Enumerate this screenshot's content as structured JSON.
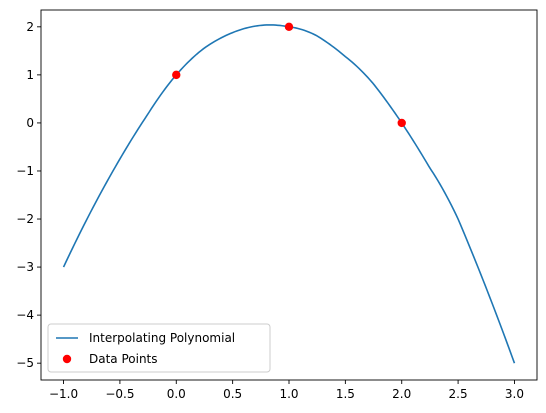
{
  "chart_data": {
    "type": "line",
    "title": "",
    "xlabel": "",
    "ylabel": "",
    "xlim": [
      -1.2,
      3.2
    ],
    "ylim": [
      -5.35,
      2.35
    ],
    "grid": false,
    "legend_position": "lower-left",
    "x_ticks": [
      -1.0,
      -0.5,
      0.0,
      0.5,
      1.0,
      1.5,
      2.0,
      2.5,
      3.0
    ],
    "x_tick_labels": [
      "−1.0",
      "−0.5",
      "0.0",
      "0.5",
      "1.0",
      "1.5",
      "2.0",
      "2.5",
      "3.0"
    ],
    "y_ticks": [
      -5,
      -4,
      -3,
      -2,
      -1,
      0,
      1,
      2
    ],
    "y_tick_labels": [
      "−5",
      "−4",
      "−3",
      "−2",
      "−1",
      "0",
      "1",
      "2"
    ],
    "series": [
      {
        "name": "Interpolating Polynomial",
        "kind": "line",
        "color": "#1f77b4",
        "x": [
          -1.0,
          -0.75,
          -0.5,
          -0.25,
          0.0,
          0.25,
          0.5,
          0.75,
          0.833,
          1.0,
          1.25,
          1.5,
          1.75,
          2.0,
          2.25,
          2.5,
          2.75,
          3.0
        ],
        "y": [
          -3.0,
          -1.81,
          -0.75,
          0.19,
          1.0,
          1.56,
          1.88,
          2.03,
          2.04,
          2.0,
          1.81,
          1.38,
          0.81,
          0.0,
          -0.94,
          -2.0,
          -3.44,
          -5.0
        ]
      },
      {
        "name": "Data Points",
        "kind": "scatter",
        "color": "#ff0000",
        "x": [
          0.0,
          1.0,
          2.0
        ],
        "y": [
          1.0,
          2.0,
          0.0
        ]
      }
    ],
    "legend": [
      {
        "label": "Interpolating Polynomial",
        "marker": "line",
        "color": "#1f77b4"
      },
      {
        "label": "Data Points",
        "marker": "dot",
        "color": "#ff0000"
      }
    ]
  }
}
